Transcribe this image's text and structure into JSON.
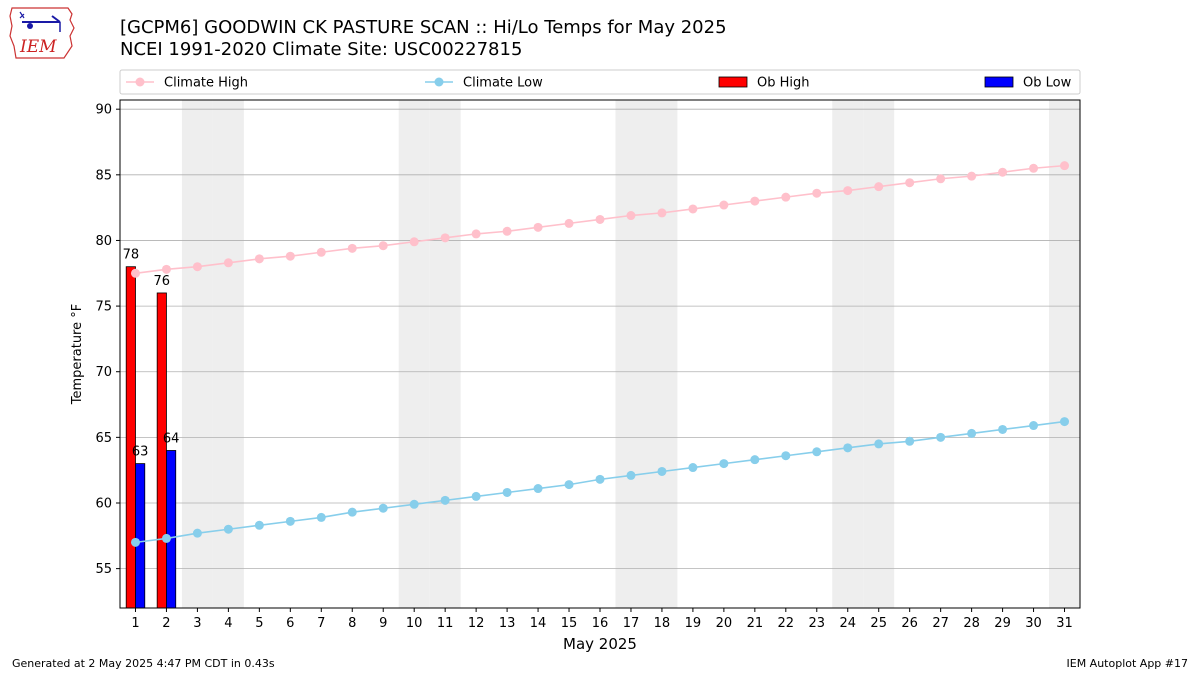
{
  "header": {
    "logo_text": "IEM",
    "title_line1": "[GCPM6] GOODWIN CK PASTURE SCAN :: Hi/Lo Temps for May 2025",
    "title_line2": "NCEI 1991-2020 Climate Site: USC00227815"
  },
  "footer": {
    "generated": "Generated at 2 May 2025 4:47 PM CDT in 0.43s",
    "app": "IEM Autoplot App #17"
  },
  "colors": {
    "climate_high": "#ffc0cb",
    "climate_low": "#87ceeb",
    "ob_high": "#ff0000",
    "ob_low": "#0000ff",
    "weekend_shade": "#eeeeee",
    "grid": "#b0b0b0"
  },
  "chart_data": {
    "type": "bar",
    "xlabel": "May 2025",
    "ylabel": "Temperature °F",
    "ylim": [
      52,
      90.7
    ],
    "xlim": [
      0.5,
      31.5
    ],
    "yticks": [
      55,
      60,
      65,
      70,
      75,
      80,
      85,
      90
    ],
    "xticks": [
      1,
      2,
      3,
      4,
      5,
      6,
      7,
      8,
      9,
      10,
      11,
      12,
      13,
      14,
      15,
      16,
      17,
      18,
      19,
      20,
      21,
      22,
      23,
      24,
      25,
      26,
      27,
      28,
      29,
      30,
      31
    ],
    "grid": "horizontal",
    "legend_position": "top",
    "legend": [
      "Climate High",
      "Climate Low",
      "Ob High",
      "Ob Low"
    ],
    "weekend_days": [
      3,
      4,
      10,
      11,
      17,
      18,
      24,
      25,
      31
    ],
    "days": [
      1,
      2,
      3,
      4,
      5,
      6,
      7,
      8,
      9,
      10,
      11,
      12,
      13,
      14,
      15,
      16,
      17,
      18,
      19,
      20,
      21,
      22,
      23,
      24,
      25,
      26,
      27,
      28,
      29,
      30,
      31
    ],
    "series": [
      {
        "name": "Climate High",
        "kind": "line",
        "values": [
          77.5,
          77.8,
          78.0,
          78.3,
          78.6,
          78.8,
          79.1,
          79.4,
          79.6,
          79.9,
          80.2,
          80.5,
          80.7,
          81.0,
          81.3,
          81.6,
          81.9,
          82.1,
          82.4,
          82.7,
          83.0,
          83.3,
          83.6,
          83.8,
          84.1,
          84.4,
          84.7,
          84.9,
          85.2,
          85.5,
          85.7
        ]
      },
      {
        "name": "Climate Low",
        "kind": "line",
        "values": [
          57.0,
          57.3,
          57.7,
          58.0,
          58.3,
          58.6,
          58.9,
          59.3,
          59.6,
          59.9,
          60.2,
          60.5,
          60.8,
          61.1,
          61.4,
          61.8,
          62.1,
          62.4,
          62.7,
          63.0,
          63.3,
          63.6,
          63.9,
          64.2,
          64.5,
          64.7,
          65.0,
          65.3,
          65.6,
          65.9,
          66.2
        ]
      },
      {
        "name": "Ob High",
        "kind": "bar",
        "days": [
          1,
          2
        ],
        "values": [
          78,
          76
        ]
      },
      {
        "name": "Ob Low",
        "kind": "bar",
        "days": [
          1,
          2
        ],
        "values": [
          63,
          64
        ]
      }
    ]
  }
}
